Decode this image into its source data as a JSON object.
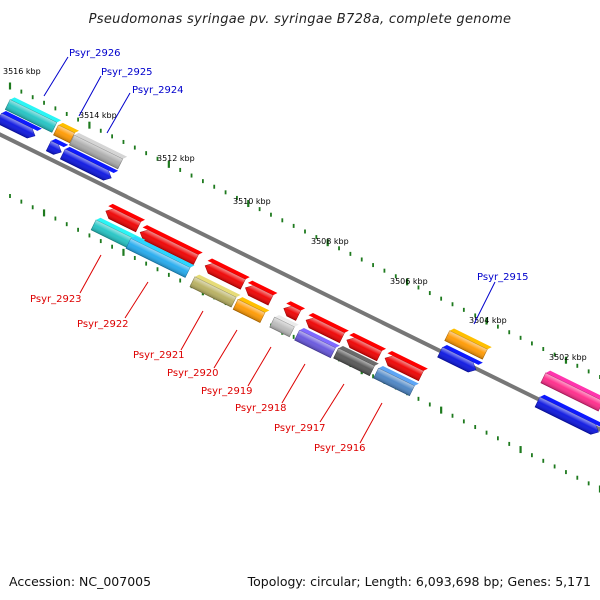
{
  "title": "Pseudomonas syringae pv. syringae B728a, complete genome",
  "footer": {
    "accession": "Accession: NC_007005",
    "stats": "Topology: circular; Length: 6,093,698 bp; Genes: 5,171"
  },
  "colors": {
    "forward_label": "#0000cc",
    "reverse_label": "#dd0000",
    "backbone": "#777777",
    "tick": "#1e7a1e"
  },
  "scale_ticks": [
    {
      "label": "3516 kbp",
      "kbp": 3516
    },
    {
      "label": "3514 kbp",
      "kbp": 3514
    },
    {
      "label": "3512 kbp",
      "kbp": 3512
    },
    {
      "label": "3510 kbp",
      "kbp": 3510
    },
    {
      "label": "3508 kbp",
      "kbp": 3508
    },
    {
      "label": "3506 kbp",
      "kbp": 3506
    },
    {
      "label": "3504 kbp",
      "kbp": 3504
    },
    {
      "label": "3502 kbp",
      "kbp": 3502
    }
  ],
  "forward_gene_labels": [
    "Psyr_2926",
    "Psyr_2925",
    "Psyr_2924",
    "Psyr_2915"
  ],
  "reverse_gene_labels": [
    "Psyr_2923",
    "Psyr_2922",
    "Psyr_2921",
    "Psyr_2920",
    "Psyr_2919",
    "Psyr_2918",
    "Psyr_2917",
    "Psyr_2916"
  ]
}
